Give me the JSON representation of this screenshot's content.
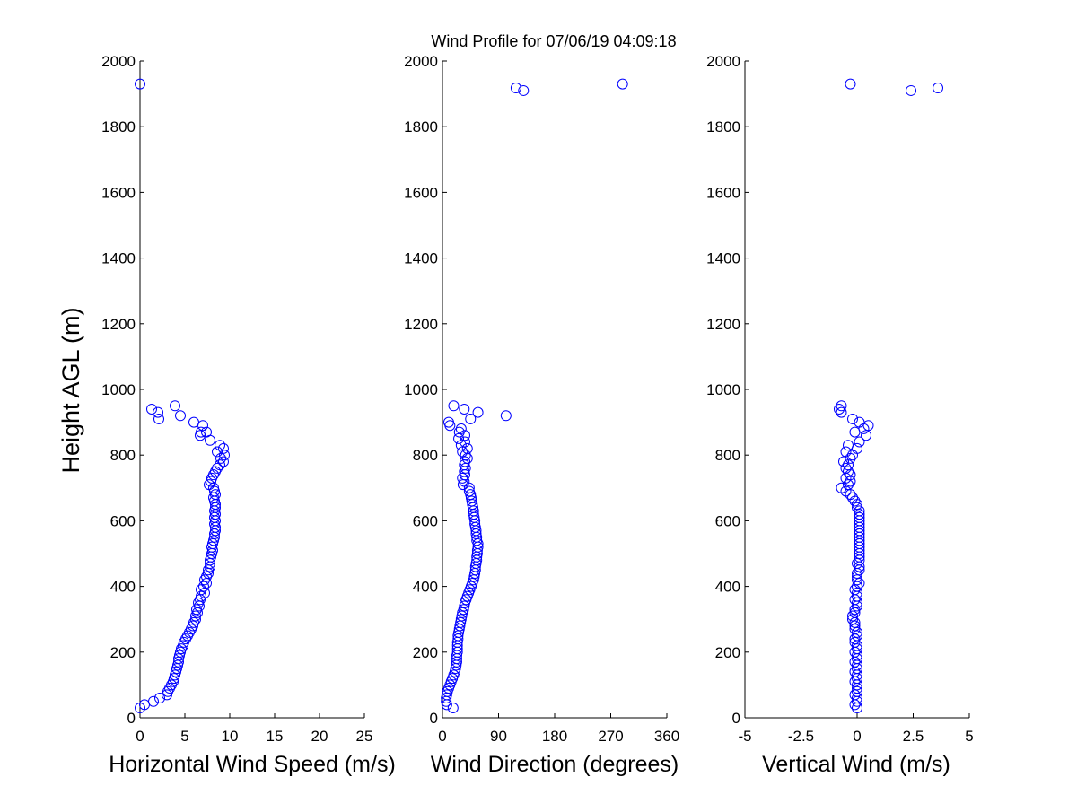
{
  "figure": {
    "title": "Wind Profile for  07/06/19 04:09:18",
    "marker_color": "#0000ff",
    "axis_color": "#000000",
    "background": "#ffffff"
  },
  "chart_data": [
    {
      "type": "scatter",
      "id": "speed",
      "title": "",
      "xlabel": "Horizontal Wind Speed (m/s)",
      "ylabel": "Height AGL (m)",
      "xlim": [
        0,
        25
      ],
      "ylim": [
        0,
        2000
      ],
      "xticks": [
        0,
        5,
        10,
        15,
        20,
        25
      ],
      "xtick_labels": [
        "0",
        "5",
        "10",
        "15",
        "20",
        "25"
      ],
      "yticks": [
        0,
        200,
        400,
        600,
        800,
        1000,
        1200,
        1400,
        1600,
        1800,
        2000
      ],
      "ytick_labels": [
        "0",
        "200",
        "400",
        "600",
        "800",
        "1000",
        "1200",
        "1400",
        "1600",
        "1800",
        "2000"
      ],
      "grid": false,
      "marker": "open-circle",
      "points": [
        [
          0.0,
          1930
        ],
        [
          3.9,
          950
        ],
        [
          1.3,
          940
        ],
        [
          2.0,
          930
        ],
        [
          2.1,
          910
        ],
        [
          4.5,
          920
        ],
        [
          6.0,
          900
        ],
        [
          7.0,
          890
        ],
        [
          6.8,
          870
        ],
        [
          7.4,
          870
        ],
        [
          6.7,
          860
        ],
        [
          7.8,
          845
        ],
        [
          8.9,
          830
        ],
        [
          9.3,
          820
        ],
        [
          8.6,
          810
        ],
        [
          9.4,
          800
        ],
        [
          9.0,
          790
        ],
        [
          9.3,
          780
        ],
        [
          8.9,
          770
        ],
        [
          8.6,
          760
        ],
        [
          8.4,
          750
        ],
        [
          8.2,
          740
        ],
        [
          8.0,
          730
        ],
        [
          7.9,
          720
        ],
        [
          7.7,
          710
        ],
        [
          8.2,
          700
        ],
        [
          8.3,
          690
        ],
        [
          8.4,
          680
        ],
        [
          8.2,
          670
        ],
        [
          8.3,
          660
        ],
        [
          8.4,
          650
        ],
        [
          8.4,
          640
        ],
        [
          8.3,
          630
        ],
        [
          8.4,
          620
        ],
        [
          8.3,
          610
        ],
        [
          8.4,
          600
        ],
        [
          8.3,
          590
        ],
        [
          8.4,
          580
        ],
        [
          8.4,
          570
        ],
        [
          8.3,
          560
        ],
        [
          8.3,
          550
        ],
        [
          8.2,
          540
        ],
        [
          8.1,
          530
        ],
        [
          8.0,
          520
        ],
        [
          8.1,
          510
        ],
        [
          8.0,
          500
        ],
        [
          7.9,
          490
        ],
        [
          7.8,
          480
        ],
        [
          7.8,
          470
        ],
        [
          7.8,
          460
        ],
        [
          7.6,
          450
        ],
        [
          7.6,
          440
        ],
        [
          7.4,
          430
        ],
        [
          7.2,
          420
        ],
        [
          7.4,
          410
        ],
        [
          7.1,
          400
        ],
        [
          6.8,
          390
        ],
        [
          7.2,
          380
        ],
        [
          6.8,
          370
        ],
        [
          6.7,
          360
        ],
        [
          6.5,
          350
        ],
        [
          6.6,
          340
        ],
        [
          6.3,
          330
        ],
        [
          6.4,
          320
        ],
        [
          6.2,
          310
        ],
        [
          6.2,
          300
        ],
        [
          6.0,
          290
        ],
        [
          5.9,
          280
        ],
        [
          5.7,
          270
        ],
        [
          5.5,
          260
        ],
        [
          5.3,
          250
        ],
        [
          5.1,
          240
        ],
        [
          4.9,
          230
        ],
        [
          4.8,
          220
        ],
        [
          4.6,
          210
        ],
        [
          4.5,
          200
        ],
        [
          4.4,
          190
        ],
        [
          4.3,
          180
        ],
        [
          4.3,
          170
        ],
        [
          4.2,
          160
        ],
        [
          4.1,
          150
        ],
        [
          4.0,
          140
        ],
        [
          3.9,
          130
        ],
        [
          3.8,
          120
        ],
        [
          3.7,
          110
        ],
        [
          3.5,
          100
        ],
        [
          3.3,
          90
        ],
        [
          3.1,
          80
        ],
        [
          3.0,
          70
        ],
        [
          2.2,
          60
        ],
        [
          1.5,
          50
        ],
        [
          0.5,
          40
        ],
        [
          0.0,
          30
        ]
      ]
    },
    {
      "type": "scatter",
      "id": "direction",
      "title": "",
      "xlabel": "Wind Direction (degrees)",
      "ylabel": "",
      "xlim": [
        0,
        360
      ],
      "ylim": [
        0,
        2000
      ],
      "xticks": [
        0,
        90,
        180,
        270,
        360
      ],
      "xtick_labels": [
        "0",
        "90",
        "180",
        "270",
        "360"
      ],
      "yticks": [
        0,
        200,
        400,
        600,
        800,
        1000,
        1200,
        1400,
        1600,
        1800,
        2000
      ],
      "ytick_labels": [
        "0",
        "200",
        "400",
        "600",
        "800",
        "1000",
        "1200",
        "1400",
        "1600",
        "1800",
        "2000"
      ],
      "grid": false,
      "marker": "open-circle",
      "points": [
        [
          289,
          1930
        ],
        [
          118,
          1918
        ],
        [
          130,
          1910
        ],
        [
          18,
          950
        ],
        [
          35,
          940
        ],
        [
          57,
          930
        ],
        [
          102,
          920
        ],
        [
          45,
          910
        ],
        [
          10,
          900
        ],
        [
          12,
          890
        ],
        [
          30,
          880
        ],
        [
          27,
          870
        ],
        [
          36,
          860
        ],
        [
          26,
          850
        ],
        [
          36,
          840
        ],
        [
          30,
          830
        ],
        [
          40,
          820
        ],
        [
          32,
          810
        ],
        [
          37,
          800
        ],
        [
          40,
          790
        ],
        [
          36,
          780
        ],
        [
          35,
          770
        ],
        [
          37,
          760
        ],
        [
          35,
          750
        ],
        [
          36,
          740
        ],
        [
          32,
          730
        ],
        [
          35,
          720
        ],
        [
          33,
          710
        ],
        [
          43,
          700
        ],
        [
          43,
          690
        ],
        [
          45,
          680
        ],
        [
          46,
          670
        ],
        [
          47,
          660
        ],
        [
          48,
          650
        ],
        [
          49,
          640
        ],
        [
          50,
          630
        ],
        [
          50,
          620
        ],
        [
          51,
          610
        ],
        [
          52,
          600
        ],
        [
          52,
          590
        ],
        [
          53,
          580
        ],
        [
          54,
          570
        ],
        [
          54,
          560
        ],
        [
          55,
          550
        ],
        [
          55,
          540
        ],
        [
          57,
          530
        ],
        [
          57,
          520
        ],
        [
          56,
          510
        ],
        [
          56,
          500
        ],
        [
          55,
          490
        ],
        [
          55,
          480
        ],
        [
          54,
          470
        ],
        [
          53,
          460
        ],
        [
          53,
          450
        ],
        [
          52,
          440
        ],
        [
          51,
          430
        ],
        [
          50,
          420
        ],
        [
          48,
          410
        ],
        [
          46,
          400
        ],
        [
          44,
          390
        ],
        [
          42,
          380
        ],
        [
          40,
          370
        ],
        [
          38,
          360
        ],
        [
          36,
          350
        ],
        [
          35,
          340
        ],
        [
          34,
          330
        ],
        [
          32,
          320
        ],
        [
          31,
          310
        ],
        [
          30,
          300
        ],
        [
          29,
          290
        ],
        [
          28,
          280
        ],
        [
          27,
          270
        ],
        [
          26,
          260
        ],
        [
          25,
          250
        ],
        [
          25,
          240
        ],
        [
          24,
          230
        ],
        [
          24,
          220
        ],
        [
          24,
          210
        ],
        [
          24,
          200
        ],
        [
          23,
          190
        ],
        [
          23,
          180
        ],
        [
          23,
          170
        ],
        [
          22,
          160
        ],
        [
          21,
          150
        ],
        [
          20,
          140
        ],
        [
          18,
          130
        ],
        [
          16,
          120
        ],
        [
          14,
          110
        ],
        [
          12,
          100
        ],
        [
          10,
          90
        ],
        [
          8,
          80
        ],
        [
          7,
          70
        ],
        [
          6,
          60
        ],
        [
          6,
          50
        ],
        [
          7,
          40
        ],
        [
          17,
          30
        ]
      ]
    },
    {
      "type": "scatter",
      "id": "vertical",
      "title": "",
      "xlabel": "Vertical Wind (m/s)",
      "ylabel": "",
      "xlim": [
        -5,
        5
      ],
      "ylim": [
        0,
        2000
      ],
      "xticks": [
        -5,
        -2.5,
        0,
        2.5,
        5
      ],
      "xtick_labels": [
        "-5",
        "-2.5",
        "0",
        "2.5",
        "5"
      ],
      "yticks": [
        0,
        200,
        400,
        600,
        800,
        1000,
        1200,
        1400,
        1600,
        1800,
        2000
      ],
      "ytick_labels": [
        "0",
        "200",
        "400",
        "600",
        "800",
        "1000",
        "1200",
        "1400",
        "1600",
        "1800",
        "2000"
      ],
      "grid": false,
      "marker": "open-circle",
      "points": [
        [
          -0.3,
          1930
        ],
        [
          3.6,
          1918
        ],
        [
          2.4,
          1910
        ],
        [
          -0.7,
          950
        ],
        [
          -0.8,
          940
        ],
        [
          -0.7,
          930
        ],
        [
          -0.2,
          910
        ],
        [
          0.1,
          900
        ],
        [
          0.5,
          890
        ],
        [
          0.3,
          880
        ],
        [
          -0.1,
          870
        ],
        [
          0.4,
          860
        ],
        [
          0.1,
          840
        ],
        [
          -0.4,
          830
        ],
        [
          0.0,
          820
        ],
        [
          -0.5,
          810
        ],
        [
          -0.2,
          800
        ],
        [
          -0.3,
          790
        ],
        [
          -0.6,
          780
        ],
        [
          -0.4,
          770
        ],
        [
          -0.5,
          760
        ],
        [
          -0.4,
          750
        ],
        [
          -0.3,
          740
        ],
        [
          -0.5,
          730
        ],
        [
          -0.3,
          720
        ],
        [
          -0.4,
          710
        ],
        [
          -0.7,
          700
        ],
        [
          -0.5,
          690
        ],
        [
          -0.3,
          680
        ],
        [
          -0.2,
          670
        ],
        [
          -0.1,
          660
        ],
        [
          0.0,
          650
        ],
        [
          0.0,
          640
        ],
        [
          0.1,
          630
        ],
        [
          0.1,
          620
        ],
        [
          0.1,
          610
        ],
        [
          0.1,
          600
        ],
        [
          0.1,
          590
        ],
        [
          0.1,
          580
        ],
        [
          0.1,
          570
        ],
        [
          0.1,
          560
        ],
        [
          0.1,
          550
        ],
        [
          0.1,
          540
        ],
        [
          0.1,
          530
        ],
        [
          0.1,
          520
        ],
        [
          0.1,
          510
        ],
        [
          0.1,
          500
        ],
        [
          0.1,
          490
        ],
        [
          0.1,
          480
        ],
        [
          0.0,
          470
        ],
        [
          0.1,
          460
        ],
        [
          0.1,
          450
        ],
        [
          0.0,
          440
        ],
        [
          0.0,
          430
        ],
        [
          0.0,
          420
        ],
        [
          0.1,
          410
        ],
        [
          0.0,
          400
        ],
        [
          -0.1,
          390
        ],
        [
          0.0,
          380
        ],
        [
          0.0,
          370
        ],
        [
          -0.1,
          360
        ],
        [
          0.0,
          350
        ],
        [
          0.0,
          340
        ],
        [
          -0.1,
          330
        ],
        [
          -0.1,
          320
        ],
        [
          -0.2,
          310
        ],
        [
          -0.2,
          300
        ],
        [
          -0.1,
          290
        ],
        [
          -0.1,
          280
        ],
        [
          -0.1,
          270
        ],
        [
          0.0,
          260
        ],
        [
          0.0,
          250
        ],
        [
          -0.1,
          240
        ],
        [
          -0.1,
          230
        ],
        [
          0.0,
          220
        ],
        [
          0.0,
          210
        ],
        [
          -0.1,
          200
        ],
        [
          0.0,
          190
        ],
        [
          0.0,
          180
        ],
        [
          -0.1,
          170
        ],
        [
          0.0,
          160
        ],
        [
          0.0,
          150
        ],
        [
          -0.1,
          140
        ],
        [
          0.0,
          130
        ],
        [
          0.0,
          120
        ],
        [
          -0.1,
          110
        ],
        [
          0.0,
          100
        ],
        [
          0.0,
          90
        ],
        [
          0.0,
          80
        ],
        [
          -0.1,
          70
        ],
        [
          0.0,
          60
        ],
        [
          0.0,
          50
        ],
        [
          -0.1,
          40
        ],
        [
          0.0,
          30
        ]
      ]
    }
  ]
}
